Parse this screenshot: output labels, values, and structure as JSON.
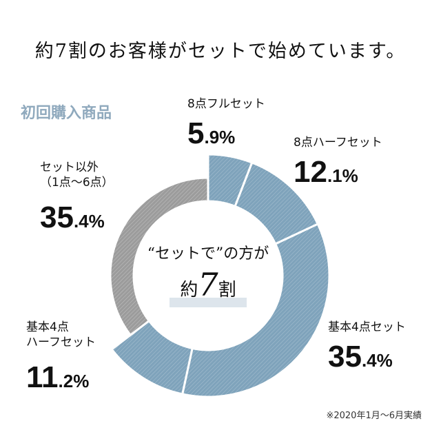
{
  "headline": "約7割のお客様がセットで始めています。",
  "section_title": "初回購入商品",
  "center": {
    "line1": "“セットで”の方が",
    "prefix": "約",
    "big": "7",
    "suffix": "割"
  },
  "note": "※2020年1月〜6月実績",
  "colors": {
    "set": "#7fa3bb",
    "other": "#9c9c9c",
    "section": "#8fa9bd"
  },
  "chart_data": {
    "type": "pie",
    "style": "donut",
    "categories": [
      "8点フルセット",
      "8点ハーフセット",
      "基本4点セット",
      "基本4点 ハーフセット",
      "セット以外（1点〜6点）"
    ],
    "values": [
      5.9,
      12.1,
      35.4,
      11.2,
      35.4
    ],
    "unit": "%",
    "labels": [
      {
        "name_lines": [
          "8点フルセット"
        ],
        "int": "5",
        "dec": ".9%"
      },
      {
        "name_lines": [
          "8点ハーフセット"
        ],
        "int": "12",
        "dec": ".1%"
      },
      {
        "name_lines": [
          "基本4点セット"
        ],
        "int": "35",
        "dec": ".4%"
      },
      {
        "name_lines": [
          "基本4点",
          "ハーフセット"
        ],
        "int": "11",
        "dec": ".2%"
      },
      {
        "name_lines": [
          "セット以外",
          "（1点〜6点）"
        ],
        "int": "35",
        "dec": ".4%"
      }
    ]
  }
}
